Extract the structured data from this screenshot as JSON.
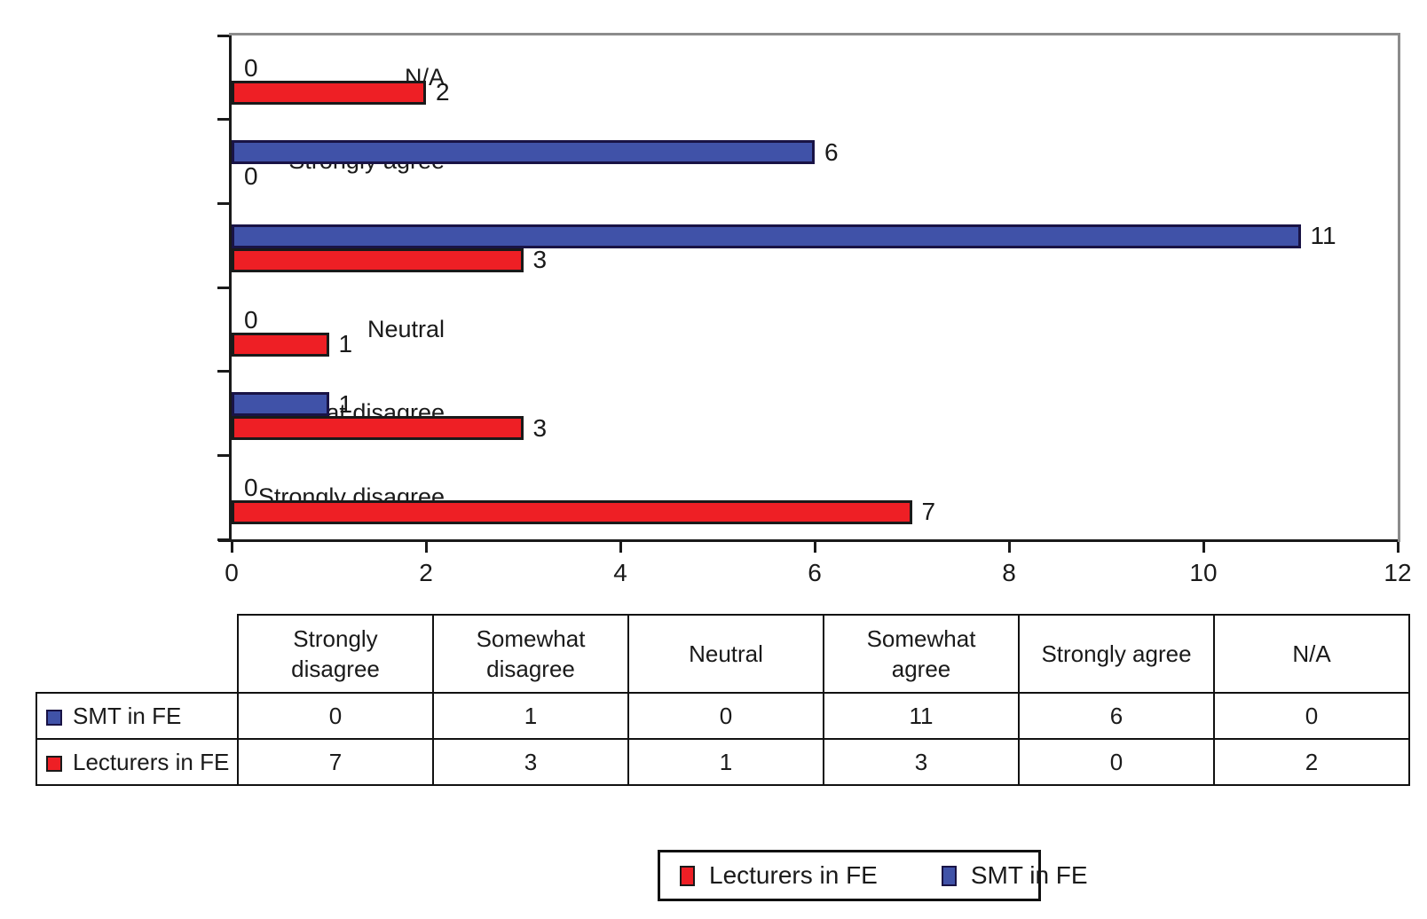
{
  "chart_data": {
    "type": "bar",
    "orientation": "horizontal",
    "title": "",
    "xlabel": "",
    "ylabel": "",
    "categories": [
      "N/A",
      "Strongly agree",
      "Somewhat agree",
      "Neutral",
      "Somewhat disagree",
      "Strongly disagree"
    ],
    "series": [
      {
        "name": "SMT in FE",
        "color": "#4052A8",
        "border_color": "#191345",
        "values": [
          0,
          6,
          11,
          0,
          1,
          0
        ]
      },
      {
        "name": "Lecturers in FE",
        "color": "#EE1F25",
        "border_color": "#1A1A1A",
        "values": [
          2,
          0,
          3,
          1,
          3,
          7
        ]
      }
    ],
    "xlim": [
      0,
      12
    ],
    "xticks": [
      "0",
      "2",
      "4",
      "6",
      "8",
      "10",
      "12"
    ],
    "grid": false,
    "bar_value_labels_shown": true,
    "legend_position": "bottom"
  },
  "table": {
    "columns": [
      "Strongly disagree",
      "Somewhat disagree",
      "Neutral",
      "Somewhat agree",
      "Strongly agree",
      "N/A"
    ],
    "rows": [
      {
        "label": "SMT in FE",
        "swatch_color": "#4052A8",
        "swatch_border": "#191345",
        "values": [
          "0",
          "1",
          "0",
          "11",
          "6",
          "0"
        ]
      },
      {
        "label": "Lecturers in FE",
        "swatch_color": "#EE1F25",
        "swatch_border": "#1A1A1A",
        "values": [
          "7",
          "3",
          "1",
          "3",
          "0",
          "2"
        ]
      }
    ]
  },
  "legend": {
    "items": [
      {
        "label": "Lecturers in FE",
        "color": "#EE1F25",
        "border_color": "#1A1A1A"
      },
      {
        "label": "SMT in FE",
        "color": "#4052A8",
        "border_color": "#191345"
      }
    ]
  },
  "colors": {
    "plot_frame_gray": "#8C8C8C",
    "axis_black": "#1A1A1A"
  }
}
